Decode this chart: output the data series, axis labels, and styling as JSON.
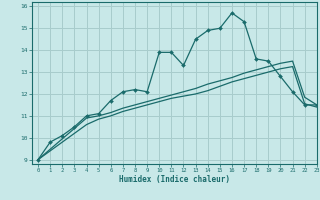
{
  "title": "",
  "xlabel": "Humidex (Indice chaleur)",
  "bg_color": "#c8e8e8",
  "grid_color": "#a8cccc",
  "line_color": "#1a6b6b",
  "xlim": [
    -0.5,
    23
  ],
  "ylim": [
    8.8,
    16.2
  ],
  "xticks": [
    0,
    1,
    2,
    3,
    4,
    5,
    6,
    7,
    8,
    9,
    10,
    11,
    12,
    13,
    14,
    15,
    16,
    17,
    18,
    19,
    20,
    21,
    22,
    23
  ],
  "yticks": [
    9,
    10,
    11,
    12,
    13,
    14,
    15,
    16
  ],
  "line1_x": [
    0,
    1,
    2,
    3,
    4,
    5,
    6,
    7,
    8,
    9,
    10,
    11,
    12,
    13,
    14,
    15,
    16,
    17,
    18,
    19,
    20,
    21,
    22,
    23
  ],
  "line1_y": [
    9.0,
    9.8,
    10.1,
    10.5,
    11.0,
    11.1,
    11.7,
    12.1,
    12.2,
    12.1,
    13.9,
    13.9,
    13.3,
    14.5,
    14.9,
    15.0,
    15.7,
    15.3,
    13.6,
    13.5,
    12.8,
    12.1,
    11.5,
    11.5
  ],
  "line2_x": [
    0,
    4,
    5,
    6,
    7,
    8,
    9,
    10,
    11,
    12,
    13,
    14,
    15,
    16,
    17,
    18,
    19,
    20,
    21,
    22,
    23
  ],
  "line2_y": [
    9.0,
    10.9,
    11.0,
    11.15,
    11.35,
    11.5,
    11.65,
    11.8,
    11.95,
    12.1,
    12.25,
    12.45,
    12.6,
    12.75,
    12.95,
    13.1,
    13.25,
    13.4,
    13.5,
    11.85,
    11.5
  ],
  "line3_x": [
    0,
    4,
    5,
    6,
    7,
    8,
    9,
    10,
    11,
    12,
    13,
    14,
    15,
    16,
    17,
    18,
    19,
    20,
    21,
    22,
    23
  ],
  "line3_y": [
    9.0,
    10.6,
    10.85,
    11.0,
    11.2,
    11.35,
    11.5,
    11.65,
    11.8,
    11.9,
    12.0,
    12.15,
    12.35,
    12.55,
    12.7,
    12.85,
    13.0,
    13.15,
    13.25,
    11.55,
    11.4
  ]
}
